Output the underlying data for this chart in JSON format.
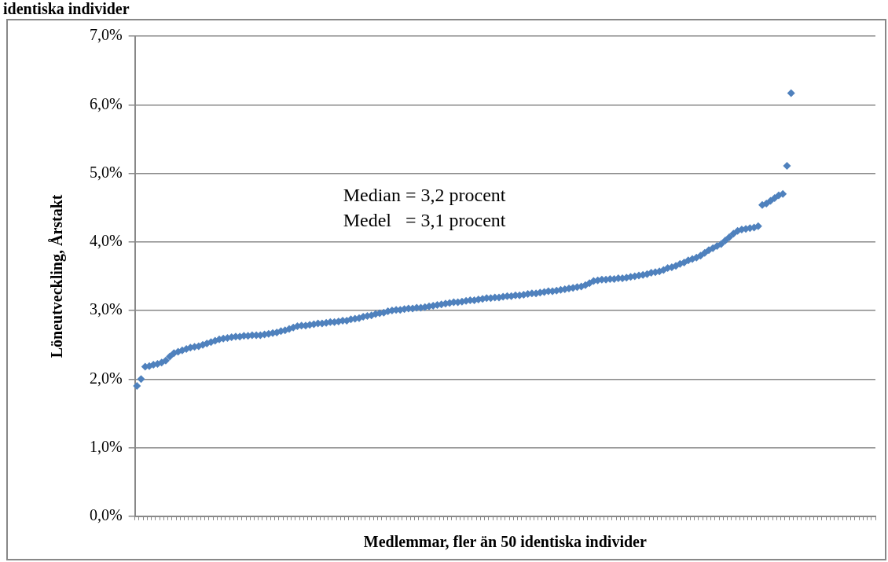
{
  "chart_data": {
    "type": "scatter",
    "title": "identiska individer",
    "xlabel": "Medlemmar, fler än 50 identiska individer",
    "ylabel": "Löneutveckling, Årstakt",
    "annotations": [
      "Median = 3,2 procent",
      "Medel   = 3,1 procent"
    ],
    "categories": [
      null,
      null,
      null,
      null,
      null,
      null,
      null,
      null,
      null,
      null,
      null,
      null,
      null,
      null,
      null,
      null,
      null,
      null,
      null,
      null,
      null,
      null,
      null,
      null,
      null,
      null,
      null,
      null,
      null,
      null,
      null,
      null,
      null,
      null,
      null,
      null,
      null,
      null,
      null,
      null,
      null,
      null,
      null,
      null,
      null,
      null,
      null,
      null,
      null,
      null,
      null,
      null,
      null,
      null,
      null,
      null,
      null,
      null,
      null,
      null,
      null,
      null,
      null,
      null,
      null,
      null,
      null,
      null,
      null,
      null,
      null,
      null,
      null,
      null,
      null,
      null,
      null,
      null,
      null,
      null,
      null,
      null,
      null,
      null,
      null,
      null,
      null,
      null,
      null,
      null,
      null,
      null,
      null,
      null,
      null,
      null,
      null,
      null,
      null,
      null,
      null,
      null,
      null,
      null,
      null,
      null,
      null,
      null,
      null,
      null,
      null,
      null,
      null,
      null,
      null,
      null,
      null,
      null,
      null,
      null,
      null,
      null,
      null,
      null,
      null,
      null,
      null,
      null,
      null,
      null,
      null,
      null,
      null,
      null,
      null,
      null,
      null,
      null,
      null,
      null,
      null,
      null,
      null,
      null,
      null,
      null,
      null,
      null,
      null,
      null,
      null,
      null,
      null,
      null,
      null,
      null,
      null,
      null,
      null,
      null,
      null,
      null,
      null,
      null,
      null,
      null,
      null,
      null,
      null,
      null,
      null,
      null,
      null,
      null,
      null,
      null,
      null,
      null,
      null,
      null
    ],
    "series": [
      {
        "color": "#4f81bd",
        "values": [
          1.9,
          2.0,
          2.18,
          2.19,
          2.21,
          2.22,
          2.24,
          2.27,
          2.33,
          2.38,
          2.4,
          2.42,
          2.44,
          2.46,
          2.47,
          2.48,
          2.5,
          2.52,
          2.54,
          2.56,
          2.58,
          2.59,
          2.6,
          2.61,
          2.62,
          2.62,
          2.63,
          2.63,
          2.64,
          2.64,
          2.64,
          2.65,
          2.66,
          2.67,
          2.68,
          2.7,
          2.71,
          2.73,
          2.75,
          2.77,
          2.78,
          2.78,
          2.79,
          2.8,
          2.81,
          2.81,
          2.82,
          2.83,
          2.83,
          2.84,
          2.85,
          2.85,
          2.87,
          2.88,
          2.89,
          2.91,
          2.92,
          2.93,
          2.95,
          2.96,
          2.97,
          2.99,
          3.0,
          3.01,
          3.01,
          3.02,
          3.03,
          3.03,
          3.04,
          3.04,
          3.05,
          3.06,
          3.07,
          3.08,
          3.09,
          3.1,
          3.11,
          3.12,
          3.12,
          3.13,
          3.14,
          3.15,
          3.15,
          3.16,
          3.17,
          3.18,
          3.18,
          3.19,
          3.19,
          3.2,
          3.21,
          3.21,
          3.22,
          3.22,
          3.23,
          3.24,
          3.25,
          3.25,
          3.26,
          3.27,
          3.28,
          3.28,
          3.29,
          3.3,
          3.31,
          3.32,
          3.33,
          3.34,
          3.35,
          3.37,
          3.4,
          3.43,
          3.44,
          3.45,
          3.45,
          3.46,
          3.46,
          3.47,
          3.47,
          3.48,
          3.49,
          3.5,
          3.51,
          3.52,
          3.53,
          3.55,
          3.56,
          3.57,
          3.59,
          3.62,
          3.63,
          3.65,
          3.68,
          3.7,
          3.73,
          3.75,
          3.77,
          3.8,
          3.84,
          3.88,
          3.91,
          3.94,
          3.97,
          4.02,
          4.07,
          4.12,
          4.16,
          4.18,
          4.19,
          4.2,
          4.21,
          4.23,
          4.54,
          4.56,
          4.6,
          4.64,
          4.68,
          4.7,
          5.11,
          6.17,
          null,
          null,
          null,
          null,
          null,
          null,
          null,
          null,
          null,
          null,
          null,
          null,
          null,
          null,
          null,
          null,
          null,
          null,
          null,
          null
        ]
      }
    ],
    "ylim": [
      0,
      7
    ],
    "yticks": [
      {
        "value": 0,
        "label": "0,0%"
      },
      {
        "value": 1,
        "label": "1,0%"
      },
      {
        "value": 2,
        "label": "2,0%"
      },
      {
        "value": 3,
        "label": "3,0%"
      },
      {
        "value": 4,
        "label": "4,0%"
      },
      {
        "value": 5,
        "label": "5,0%"
      },
      {
        "value": 6,
        "label": "6,0%"
      },
      {
        "value": 7,
        "label": "7,0%"
      }
    ],
    "grid": "y",
    "marker": "diamond",
    "legend": false
  }
}
